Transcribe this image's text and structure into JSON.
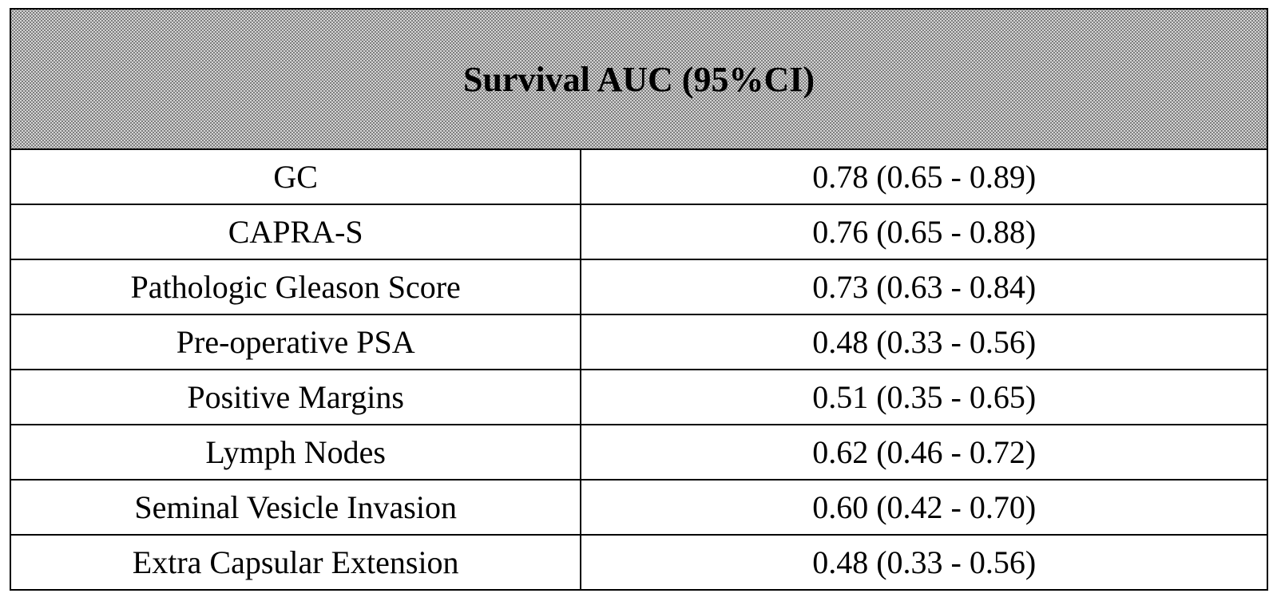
{
  "table": {
    "header": "Survival AUC (95%CI)",
    "rows": [
      {
        "label": "GC",
        "value": "0.78 (0.65 - 0.89)"
      },
      {
        "label": "CAPRA-S",
        "value": "0.76 (0.65 - 0.88)"
      },
      {
        "label": "Pathologic Gleason Score",
        "value": "0.73 (0.63 - 0.84)"
      },
      {
        "label": "Pre-operative PSA",
        "value": "0.48 (0.33 - 0.56)"
      },
      {
        "label": "Positive Margins",
        "value": "0.51 (0.35 - 0.65)"
      },
      {
        "label": "Lymph Nodes",
        "value": "0.62 (0.46 - 0.72)"
      },
      {
        "label": "Seminal Vesicle Invasion",
        "value": "0.60 (0.42 - 0.70)"
      },
      {
        "label": "Extra Capsular Extension",
        "value": "0.48 (0.33 - 0.56)"
      }
    ]
  }
}
